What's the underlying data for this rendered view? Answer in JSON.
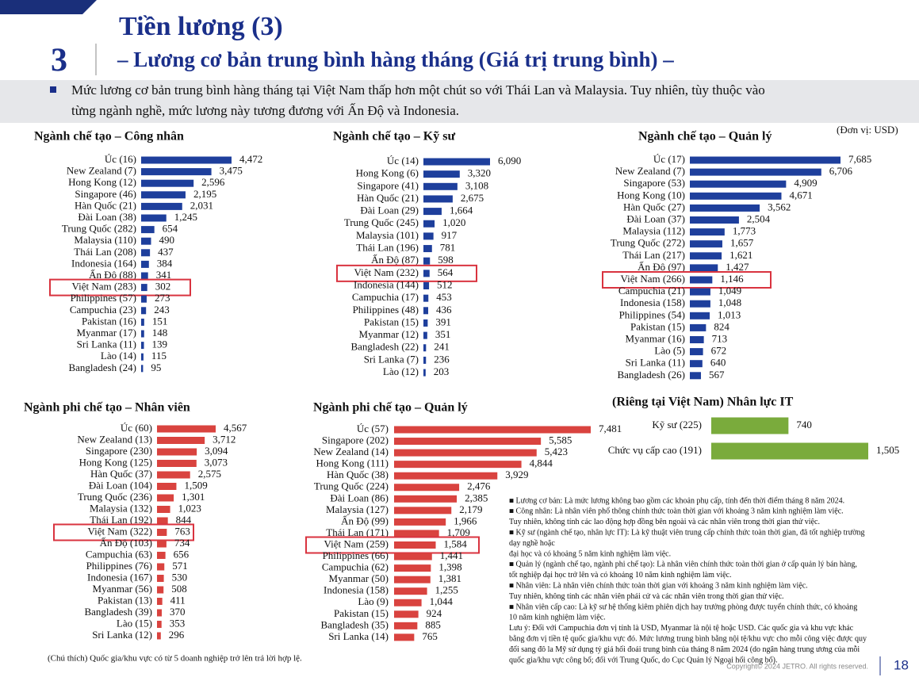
{
  "header": {
    "number": "3",
    "title": "Tiền lương (3)",
    "subtitle": "– Lương cơ bản trung bình hàng tháng (Giá trị trung bình) –"
  },
  "summary": [
    "Mức lương cơ bản trung bình hàng tháng tại Việt Nam thấp hơn một chút so với Thái Lan và Malaysia. Tuy nhiên, tùy thuộc vào",
    "từng ngành nghề, mức lương này tương đương với Ấn Độ và Indonesia."
  ],
  "unit": "(Đơn vị: USD)",
  "chart_data": [
    {
      "type": "bar",
      "orientation": "horizontal",
      "title": "Ngành chế tạo – Công nhân",
      "color": "#1e3f9c",
      "highlight_index": 11,
      "categories": [
        "Úc (16)",
        "New Zealand (7)",
        "Hong Kong (12)",
        "Singapore (46)",
        "Hàn Quốc (21)",
        "Đài Loan (38)",
        "Trung Quốc (282)",
        "Malaysia (110)",
        "Thái Lan (208)",
        "Indonesia (164)",
        "Ấn Độ (88)",
        "Việt Nam (283)",
        "Philippines (57)",
        "Campuchia (23)",
        "Pakistan (16)",
        "Myanmar (17)",
        "Sri Lanka (11)",
        "Lào (14)",
        "Bangladesh (24)"
      ],
      "values": [
        4472,
        3475,
        2596,
        2195,
        2031,
        1245,
        654,
        490,
        437,
        384,
        341,
        302,
        273,
        243,
        151,
        148,
        139,
        115,
        95
      ],
      "value_labels": [
        "4,472",
        "3,475",
        "2,596",
        "2,195",
        "2,031",
        "1,245",
        "654",
        "490",
        "437",
        "384",
        "341",
        "302",
        "273",
        "243",
        "151",
        "148",
        "139",
        "115",
        "95"
      ]
    },
    {
      "type": "bar",
      "orientation": "horizontal",
      "title": "Ngành chế tạo – Kỹ sư",
      "color": "#1e3f9c",
      "highlight_index": 9,
      "categories": [
        "Úc (14)",
        "Hong Kong (6)",
        "Singapore (41)",
        "Hàn Quốc (21)",
        "Đài Loan (29)",
        "Trung Quốc (245)",
        "Malaysia (101)",
        "Thái Lan (196)",
        "Ấn Độ (87)",
        "Việt Nam (232)",
        "Indonesia (144)",
        "Campuchia (17)",
        "Philippines (48)",
        "Pakistan (15)",
        "Myanmar (12)",
        "Bangladesh (22)",
        "Sri Lanka (7)",
        "Lào (12)"
      ],
      "values": [
        6090,
        3320,
        3108,
        2675,
        1664,
        1020,
        917,
        781,
        598,
        564,
        512,
        453,
        436,
        391,
        351,
        241,
        236,
        203
      ],
      "value_labels": [
        "6,090",
        "3,320",
        "3,108",
        "2,675",
        "1,664",
        "1,020",
        "917",
        "781",
        "598",
        "564",
        "512",
        "453",
        "436",
        "391",
        "351",
        "241",
        "236",
        "203"
      ]
    },
    {
      "type": "bar",
      "orientation": "horizontal",
      "title": "Ngành chế tạo – Quản lý",
      "color": "#1e3f9c",
      "highlight_index": 10,
      "categories": [
        "Úc (17)",
        "New Zealand (7)",
        "Singapore (53)",
        "Hong Kong (10)",
        "Hàn Quốc (27)",
        "Đài Loan (37)",
        "Malaysia (112)",
        "Trung Quốc (272)",
        "Thái Lan (217)",
        "Ấn Độ (97)",
        "Việt Nam (266)",
        "Campuchia (21)",
        "Indonesia (158)",
        "Philippines (54)",
        "Pakistan (15)",
        "Myanmar (16)",
        "Lào (5)",
        "Sri Lanka (11)",
        "Bangladesh (26)"
      ],
      "values": [
        7685,
        6706,
        4909,
        4671,
        3562,
        2504,
        1773,
        1657,
        1621,
        1427,
        1146,
        1049,
        1048,
        1013,
        824,
        713,
        672,
        640,
        567
      ],
      "value_labels": [
        "7,685",
        "6,706",
        "4,909",
        "4,671",
        "3,562",
        "2,504",
        "1,773",
        "1,657",
        "1,621",
        "1,427",
        "1,146",
        "1,049",
        "1,048",
        "1,013",
        "824",
        "713",
        "672",
        "640",
        "567"
      ]
    },
    {
      "type": "bar",
      "orientation": "horizontal",
      "title": "Ngành phi chế tạo – Nhân viên",
      "color": "#d9433f",
      "highlight_index": 9,
      "categories": [
        "Úc (60)",
        "New Zealand (13)",
        "Singapore (230)",
        "Hong Kong (125)",
        "Hàn Quốc (37)",
        "Đài Loan (104)",
        "Trung Quốc (236)",
        "Malaysia (132)",
        "Thái Lan (192)",
        "Việt Nam (322)",
        "Ấn Độ (103)",
        "Campuchia (63)",
        "Philippines (76)",
        "Indonesia (167)",
        "Myanmar (56)",
        "Pakistan (13)",
        "Bangladesh (39)",
        "Lào (15)",
        "Sri Lanka (12)"
      ],
      "values": [
        4567,
        3712,
        3094,
        3073,
        2575,
        1509,
        1301,
        1023,
        844,
        763,
        734,
        656,
        571,
        530,
        508,
        411,
        370,
        353,
        296
      ],
      "value_labels": [
        "4,567",
        "3,712",
        "3,094",
        "3,073",
        "2,575",
        "1,509",
        "1,301",
        "1,023",
        "844",
        "763",
        "734",
        "656",
        "571",
        "530",
        "508",
        "411",
        "370",
        "353",
        "296"
      ]
    },
    {
      "type": "bar",
      "orientation": "horizontal",
      "title": "Ngành phi chế tạo – Quản lý",
      "color": "#d9433f",
      "highlight_index": 10,
      "categories": [
        "Úc (57)",
        "Singapore (202)",
        "New Zealand (14)",
        "Hong Kong (111)",
        "Hàn Quốc (38)",
        "Trung Quốc (224)",
        "Đài Loan (86)",
        "Malaysia (127)",
        "Ấn Độ (99)",
        "Thái Lan (171)",
        "Việt Nam (259)",
        "Philippines (66)",
        "Campuchia (62)",
        "Myanmar (50)",
        "Indonesia (158)",
        "Lào (9)",
        "Pakistan (15)",
        "Bangladesh (35)",
        "Sri Lanka (14)"
      ],
      "values": [
        7481,
        5585,
        5423,
        4844,
        3929,
        2476,
        2385,
        2179,
        1966,
        1709,
        1584,
        1441,
        1398,
        1381,
        1255,
        1044,
        924,
        885,
        765
      ],
      "value_labels": [
        "7,481",
        "5,585",
        "5,423",
        "4,844",
        "3,929",
        "2,476",
        "2,385",
        "2,179",
        "1,966",
        "1,709",
        "1,584",
        "1,441",
        "1,398",
        "1,381",
        "1,255",
        "1,044",
        "924",
        "885",
        "765"
      ]
    },
    {
      "type": "bar",
      "orientation": "horizontal",
      "title": "(Riêng tại Việt Nam) Nhân lực IT",
      "color": "#7aab3c",
      "categories": [
        "Kỹ sư (225)",
        "Chức vụ cấp cao (191)"
      ],
      "values": [
        740,
        1505
      ],
      "value_labels": [
        "740",
        "1,505"
      ]
    }
  ],
  "notes": [
    "■ Lương cơ bản: Là mức lương không bao gồm các khoản phụ cấp, tính đến thời điểm tháng 8 năm 2024.",
    "■ Công nhân: Là nhân viên phổ thông chính thức toàn thời gian với khoảng 3 năm kinh nghiệm làm việc.",
    "Tuy nhiên, không tính các lao động hợp đồng bên ngoài và các nhân viên trong thời gian thử việc.",
    "■ Kỹ sư (ngành chế tạo, nhân lực IT): Là kỹ thuật viên trung cấp chính thức toàn thời gian, đã tốt nghiệp trường",
    "dạy nghề hoặc",
    "đại học và có khoảng 5 năm kinh nghiệm làm việc.",
    "■ Quản lý (ngành chế tạo, ngành phi chế tạo): Là nhân viên chính thức toàn thời gian ở cấp quản lý bán hàng,",
    "tốt nghiệp đại học trở lên và có khoảng 10 năm kinh nghiệm làm việc.",
    "■ Nhân viên: Là nhân viên chính thức toàn thời gian với khoảng 3 năm kinh nghiệm làm việc.",
    "Tuy nhiên, không tính các nhân viên phái cử và các nhân viên trong thời gian thử việc.",
    "■ Nhân viên cấp cao: Là kỹ sư hệ thống kiêm phiên dịch hay trưởng phòng được tuyển chính thức, có khoảng",
    "10 năm kinh nghiệm làm việc.",
    "Lưu ý: Đối với Campuchia đơn vị tính là USD, Myanmar là nội tệ hoặc USD. Các quốc gia và khu vực khác",
    "bằng đơn vị tiền tệ quốc gia/khu vực đó. Mức lương trung bình bằng nội tệ/khu vực cho mỗi công việc được quy",
    "đổi sang đô la Mỹ sử dụng tỷ giá hối đoái trung bình của tháng 8 năm 2024 (do ngân hàng trung ương của mỗi",
    "quốc gia/khu vực công bố; đối với Trung Quốc, do Cục Quản lý Ngoại hối công bố)."
  ],
  "footnote": "(Chú thích) Quốc gia/khu vực có từ 5 doanh nghiệp trở lên trả lời hợp lệ.",
  "footer": {
    "copyright": "Copyright© 2024 JETRO. All rights reserved.",
    "page": "18"
  }
}
